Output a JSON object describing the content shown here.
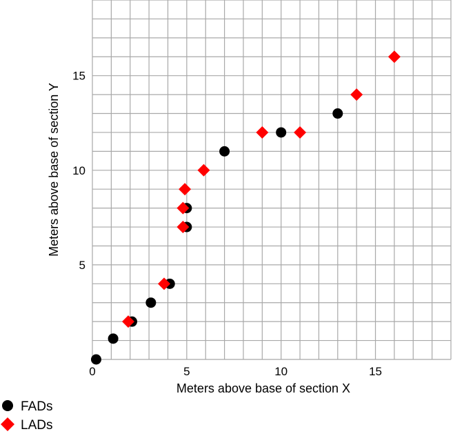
{
  "chart_data": {
    "type": "scatter",
    "title": "",
    "xlabel": "Meters above base of section X",
    "ylabel": "Meters above base of section Y",
    "xlim": [
      0,
      19
    ],
    "ylim": [
      0,
      19
    ],
    "grid": true,
    "legend_position": "bottom-left",
    "x_ticks": [
      0,
      5,
      10,
      15
    ],
    "y_ticks": [
      5,
      10,
      15
    ],
    "series": [
      {
        "name": "FADs",
        "marker": "circle",
        "color": "#000000",
        "points": [
          {
            "x": 0.2,
            "y": 0.0
          },
          {
            "x": 1.1,
            "y": 1.1
          },
          {
            "x": 2.1,
            "y": 2.0
          },
          {
            "x": 3.1,
            "y": 3.0
          },
          {
            "x": 4.1,
            "y": 4.0
          },
          {
            "x": 5.0,
            "y": 7.0
          },
          {
            "x": 5.0,
            "y": 8.0
          },
          {
            "x": 7.0,
            "y": 11.0
          },
          {
            "x": 10.0,
            "y": 12.0
          },
          {
            "x": 13.0,
            "y": 13.0
          }
        ]
      },
      {
        "name": "LADs",
        "marker": "diamond",
        "color": "#ff0000",
        "points": [
          {
            "x": 1.9,
            "y": 2.0
          },
          {
            "x": 3.8,
            "y": 4.0
          },
          {
            "x": 4.8,
            "y": 7.0
          },
          {
            "x": 4.8,
            "y": 8.0
          },
          {
            "x": 4.9,
            "y": 9.0
          },
          {
            "x": 5.9,
            "y": 10.0
          },
          {
            "x": 9.0,
            "y": 12.0
          },
          {
            "x": 11.0,
            "y": 12.0
          },
          {
            "x": 14.0,
            "y": 14.0
          },
          {
            "x": 16.0,
            "y": 16.0
          }
        ]
      }
    ]
  }
}
